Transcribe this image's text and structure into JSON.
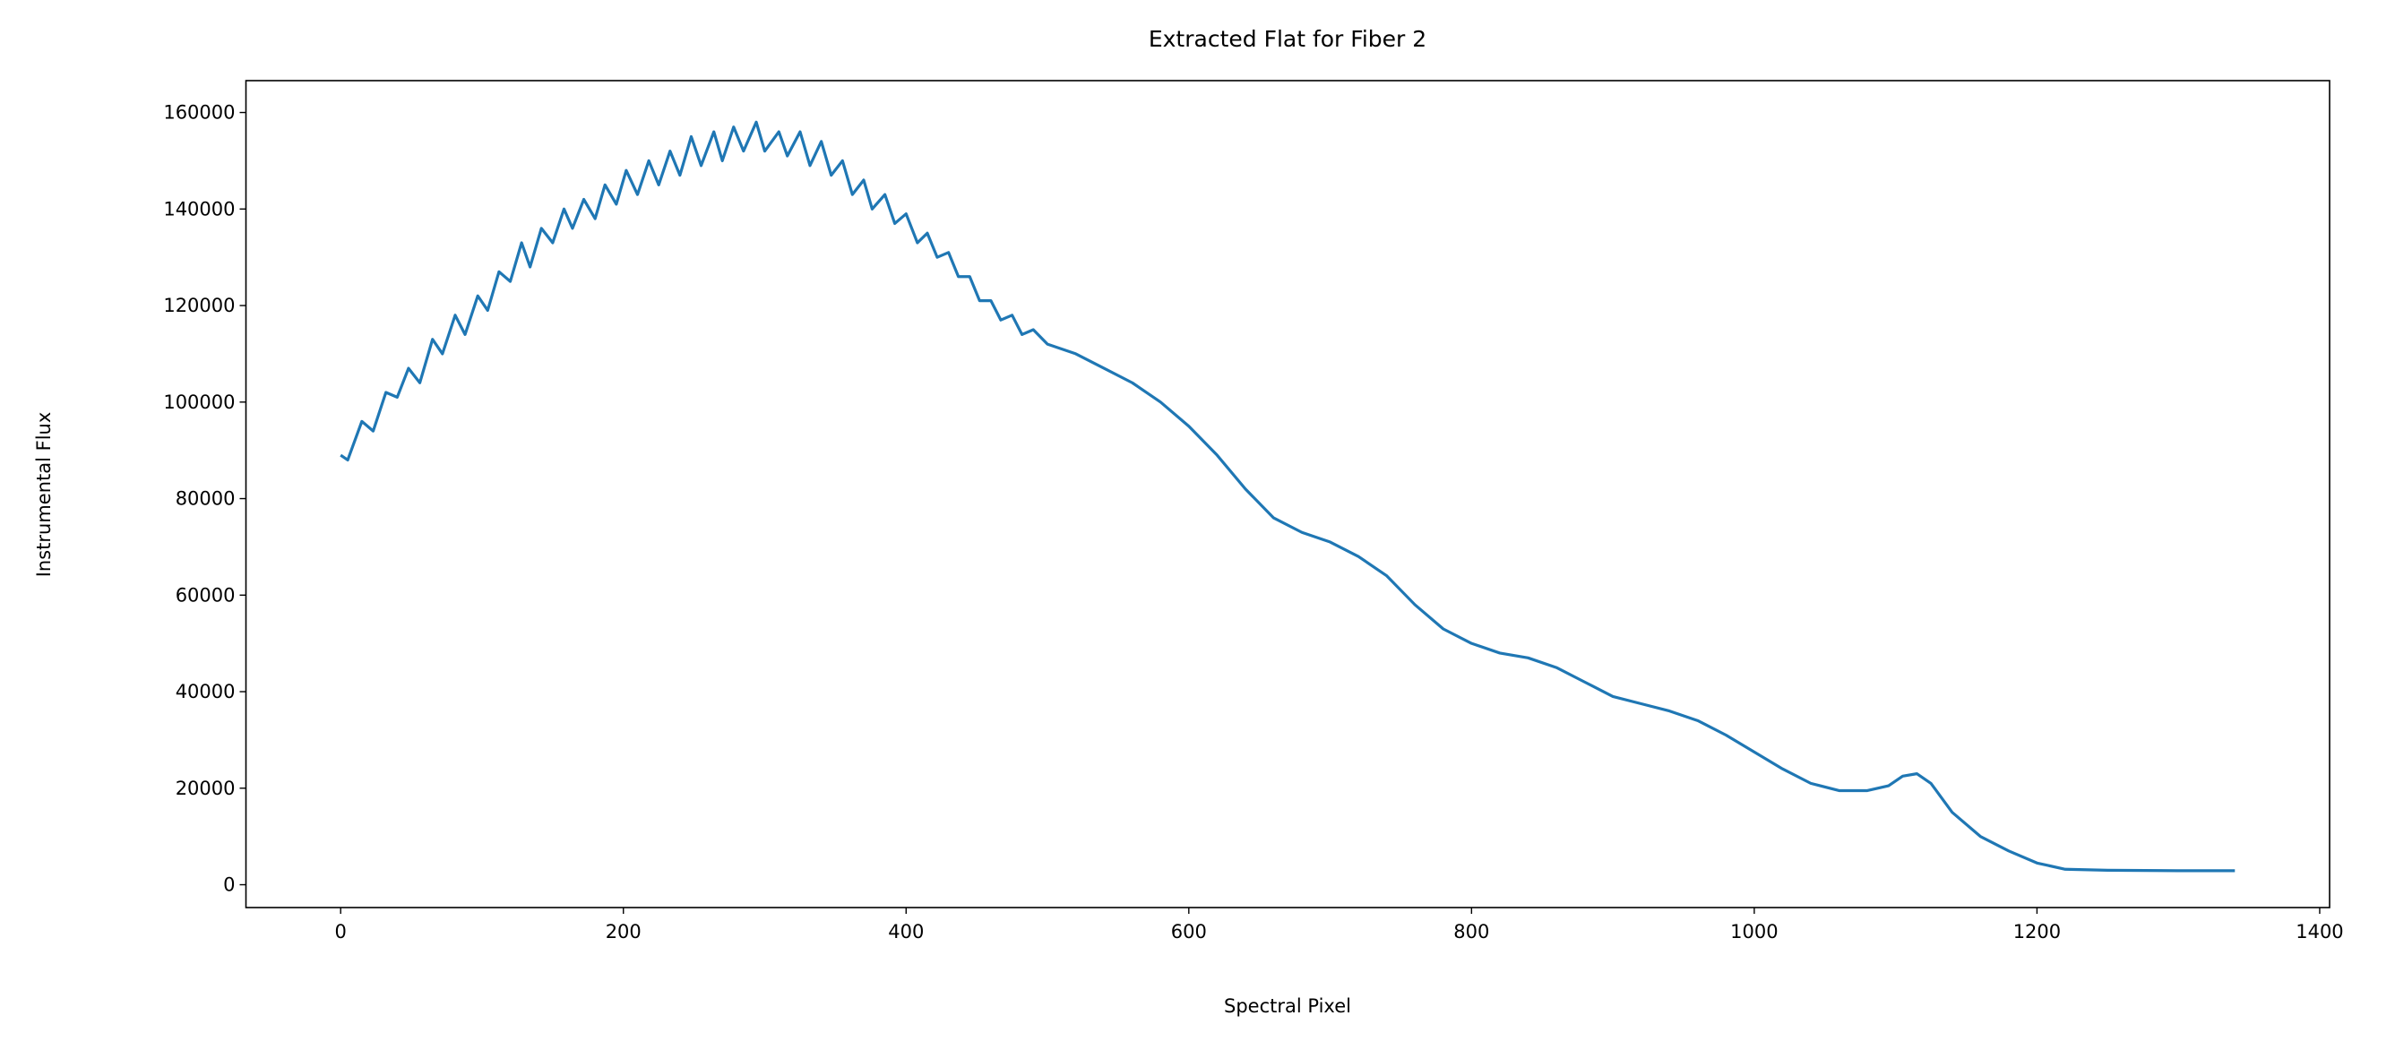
{
  "chart_data": {
    "type": "line",
    "title": "Extracted Flat for Fiber 2",
    "xlabel": "Spectral Pixel",
    "ylabel": "Instrumental Flux",
    "x": [
      0,
      5,
      15,
      23,
      32,
      40,
      48,
      56,
      65,
      72,
      81,
      88,
      97,
      104,
      112,
      120,
      128,
      134,
      142,
      150,
      158,
      164,
      172,
      180,
      187,
      195,
      202,
      210,
      218,
      225,
      233,
      240,
      248,
      255,
      264,
      270,
      278,
      285,
      294,
      300,
      310,
      316,
      325,
      332,
      340,
      347,
      355,
      362,
      370,
      376,
      385,
      392,
      400,
      408,
      415,
      422,
      430,
      437,
      445,
      452,
      460,
      467,
      475,
      482,
      490,
      500,
      520,
      540,
      560,
      580,
      600,
      620,
      640,
      660,
      680,
      700,
      720,
      740,
      760,
      780,
      800,
      820,
      840,
      860,
      880,
      900,
      920,
      940,
      960,
      980,
      1000,
      1020,
      1040,
      1060,
      1080,
      1095,
      1105,
      1115,
      1125,
      1140,
      1160,
      1180,
      1200,
      1220,
      1250,
      1300,
      1340
    ],
    "series": [
      {
        "name": "Fiber 2",
        "color": "#1f77b4",
        "values": [
          89000,
          88000,
          96000,
          94000,
          102000,
          101000,
          107000,
          104000,
          113000,
          110000,
          118000,
          114000,
          122000,
          119000,
          127000,
          125000,
          133000,
          128000,
          136000,
          133000,
          140000,
          136000,
          142000,
          138000,
          145000,
          141000,
          148000,
          143000,
          150000,
          145000,
          152000,
          147000,
          155000,
          149000,
          156000,
          150000,
          157000,
          152000,
          158000,
          152000,
          156000,
          151000,
          156000,
          149000,
          154000,
          147000,
          150000,
          143000,
          146000,
          140000,
          143000,
          137000,
          139000,
          133000,
          135000,
          130000,
          131000,
          126000,
          126000,
          121000,
          121000,
          117000,
          118000,
          114000,
          115000,
          112000,
          110000,
          107000,
          104000,
          100000,
          95000,
          89000,
          82000,
          76000,
          73000,
          71000,
          68000,
          64000,
          58000,
          53000,
          50000,
          48000,
          47000,
          45000,
          42000,
          39000,
          37500,
          36000,
          34000,
          31000,
          27500,
          24000,
          21000,
          19500,
          19500,
          20500,
          22500,
          23000,
          21000,
          15000,
          10000,
          7000,
          4500,
          3200,
          3000,
          2900,
          2900
        ]
      }
    ],
    "xlim": [
      -67,
      1407
    ],
    "ylim": [
      -4730,
      166600
    ],
    "xticks": [
      0,
      200,
      400,
      600,
      800,
      1000,
      1200,
      1400
    ],
    "yticks": [
      0,
      20000,
      40000,
      60000,
      80000,
      100000,
      120000,
      140000,
      160000
    ]
  }
}
